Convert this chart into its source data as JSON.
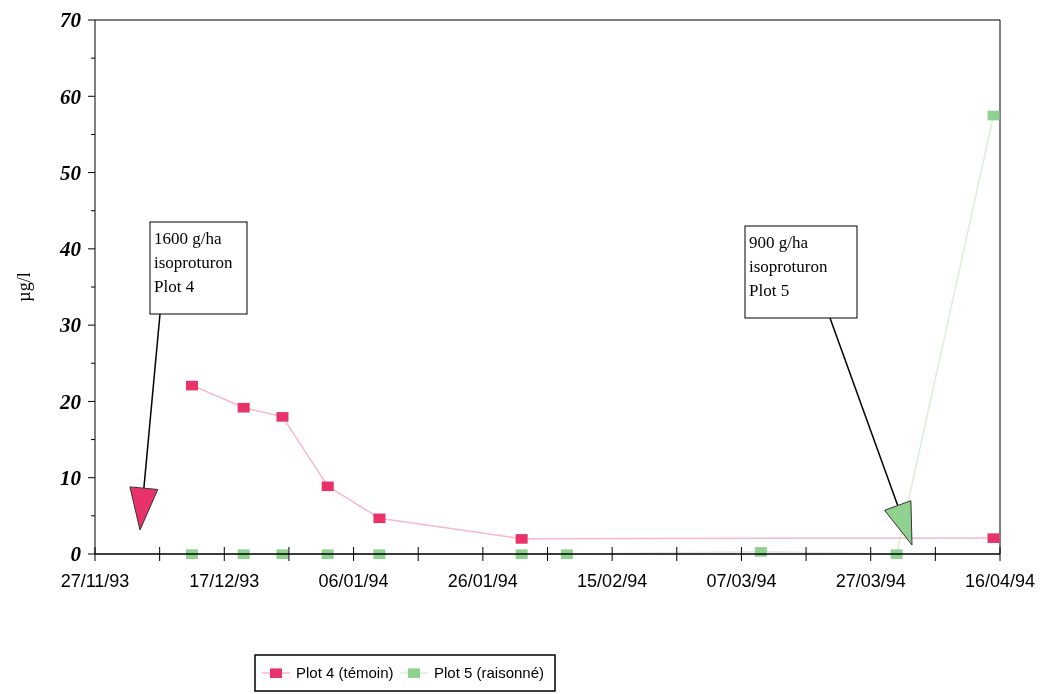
{
  "chart_data": {
    "type": "line",
    "ylabel": "µg/l",
    "marker": "square",
    "legend": "bottom",
    "line_style": "solid",
    "xlim": [
      "1993-11-27",
      "1994-04-16"
    ],
    "xticks": [
      {
        "value": "1993-11-27",
        "label": "27/11/93"
      },
      {
        "value": "1993-12-07",
        "label": null
      },
      {
        "value": "1993-12-17",
        "label": "17/12/93"
      },
      {
        "value": "1993-12-27",
        "label": null
      },
      {
        "value": "1994-01-06",
        "label": "06/01/94"
      },
      {
        "value": "1994-01-16",
        "label": null
      },
      {
        "value": "1994-01-26",
        "label": "26/01/94"
      },
      {
        "value": "1994-02-05",
        "label": null
      },
      {
        "value": "1994-02-15",
        "label": "15/02/94"
      },
      {
        "value": "1994-02-25",
        "label": null
      },
      {
        "value": "1994-03-07",
        "label": "07/03/94"
      },
      {
        "value": "1994-03-17",
        "label": null
      },
      {
        "value": "1994-03-27",
        "label": "27/03/94"
      },
      {
        "value": "1994-04-06",
        "label": null
      },
      {
        "value": "1994-04-16",
        "label": "16/04/94"
      }
    ],
    "ylim": [
      0,
      70
    ],
    "yticks": [
      0,
      {
        "value": 5,
        "label": null
      },
      10,
      {
        "value": 15,
        "label": null
      },
      20,
      {
        "value": 25,
        "label": null
      },
      30,
      {
        "value": 35,
        "label": null
      },
      40,
      {
        "value": 45,
        "label": null
      },
      50,
      {
        "value": 55,
        "label": null
      },
      60,
      {
        "value": 65,
        "label": null
      },
      70
    ],
    "series": [
      {
        "name": "Plot 4 (témoin)",
        "color": "#e8336a",
        "x": [
          "1993-12-12",
          "1993-12-20",
          "1993-12-26",
          "1994-01-02",
          "1994-01-10",
          "1994-02-01",
          "1994-03-10",
          "1994-04-15"
        ],
        "values": [
          22.1,
          19.2,
          18.0,
          8.9,
          4.7,
          2.0,
          null,
          2.1
        ]
      },
      {
        "name": "Plot 5 (raisonné)",
        "color": "#8fd18f",
        "x": [
          "1993-12-12",
          "1993-12-20",
          "1993-12-26",
          "1994-01-02",
          "1994-01-10",
          "1994-02-01",
          "1994-02-08",
          "1994-03-10",
          "1994-03-31",
          "1994-04-15"
        ],
        "values": [
          0,
          0,
          0,
          0,
          0,
          0,
          0,
          0.3,
          0,
          57.5
        ]
      }
    ],
    "annotations": [
      "1600 g/ha\nisoproturon\nPlot 4",
      "900 g/ha\nisoproturon\nPlot 5"
    ]
  }
}
